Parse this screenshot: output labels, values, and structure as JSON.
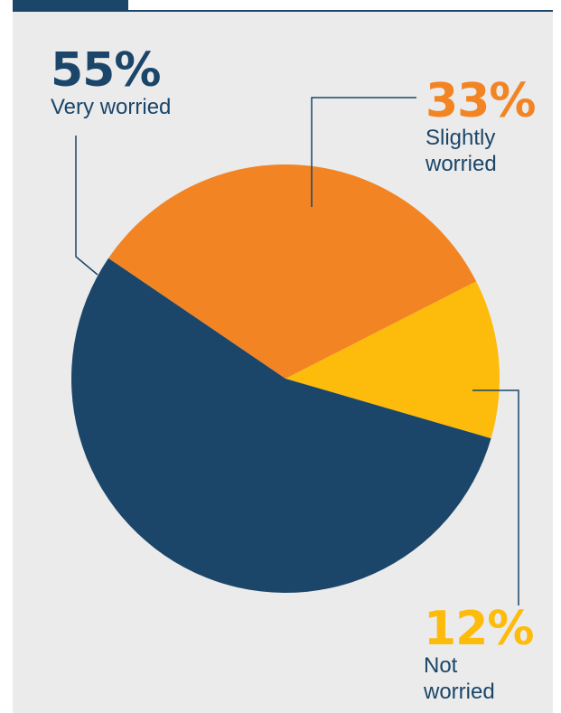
{
  "colors": {
    "very_worried": "#1b4669",
    "slightly_worried": "#f28424",
    "not_worried": "#fdbb0b",
    "leader_line": "#1b4669",
    "panel_background": "#ebebeb"
  },
  "chart_data": {
    "type": "pie",
    "title": "",
    "slices": [
      {
        "name": "Very worried",
        "label": "Very worried",
        "value": 55,
        "value_text": "55%",
        "color": "#1b4669"
      },
      {
        "name": "Slightly worried",
        "label": "Slightly\nworried",
        "value": 33,
        "value_text": "33%",
        "color": "#f28424"
      },
      {
        "name": "Not worried",
        "label": "Not\nworried",
        "value": 12,
        "value_text": "12%",
        "color": "#fdbb0b"
      }
    ]
  }
}
